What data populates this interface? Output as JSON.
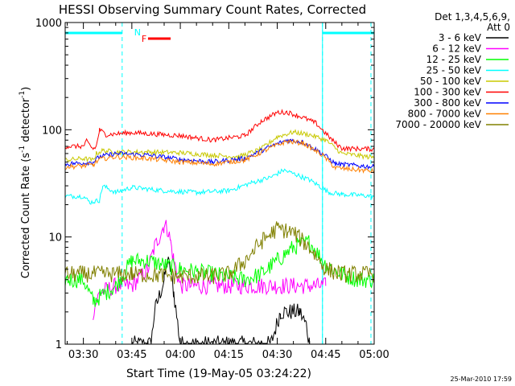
{
  "chart_data": {
    "type": "line",
    "title": "HESSI Observing Summary Count Rates, Corrected",
    "xlabel": "Start Time (19-May-05 03:24:22)",
    "ylabel": "Corrected Count Rate (s-1 detector-1)",
    "ylabel_parts": {
      "a": "Corrected Count Rate (s",
      "b": "-1",
      "c": " detector",
      "d": "-1",
      "e": ")"
    },
    "xscale": "time",
    "yscale": "log",
    "xlim": [
      "03:24:22",
      "05:00:00"
    ],
    "ylim": [
      1,
      1000
    ],
    "x_ticks": [
      "03:30",
      "03:45",
      "04:00",
      "04:15",
      "04:30",
      "04:45",
      "05:00"
    ],
    "y_ticks": [
      "1",
      "10",
      "100",
      "1000"
    ],
    "legend_header": [
      "Det 1,3,4,5,6,9,",
      "Att 0"
    ],
    "legend_position": "right",
    "footer_date": "25-Mar-2010 17:59",
    "flags": [
      {
        "label": "N",
        "color": "#00ffff",
        "intervals": [
          [
            "03:24:22",
            "03:42:00"
          ],
          [
            "04:44:00",
            "05:00:00"
          ]
        ]
      },
      {
        "label": "F",
        "color": "#ff0000",
        "intervals": [
          [
            "03:50:00",
            "03:57:00"
          ]
        ]
      }
    ],
    "dashed_markers": [
      "03:42:00",
      "04:44:00",
      "04:59:00"
    ],
    "solid_markers": [
      "03:24:22",
      "04:44:00"
    ],
    "series": [
      {
        "name": "3 - 6 keV",
        "color": "#000000",
        "x": [
          "03:45",
          "03:51",
          "03:52",
          "03:55",
          "03:56",
          "03:57",
          "03:58",
          "04:00",
          "04:28",
          "04:31",
          "04:34",
          "04:36",
          "04:37",
          "04:39",
          "04:40"
        ],
        "y": [
          1,
          1,
          2,
          4,
          6,
          5,
          3,
          1,
          1,
          2,
          2,
          2,
          2,
          1.5,
          1
        ]
      },
      {
        "name": "6 - 12 keV",
        "color": "#ff00ff",
        "x": [
          "03:33",
          "03:35",
          "03:40",
          "03:45",
          "03:50",
          "03:52",
          "03:54",
          "03:55",
          "03:56",
          "03:57",
          "03:58",
          "04:00",
          "04:05",
          "04:15",
          "04:30",
          "04:45"
        ],
        "y": [
          2,
          3,
          3.5,
          3.5,
          5,
          8,
          11,
          13,
          12,
          9,
          6,
          3.5,
          3.5,
          3.5,
          3.5,
          3.5
        ]
      },
      {
        "name": "12 - 25 keV",
        "color": "#00ff00",
        "x": [
          "03:24:22",
          "03:30",
          "03:33",
          "03:40",
          "03:45",
          "03:50",
          "04:00",
          "04:10",
          "04:20",
          "04:25",
          "04:30",
          "04:35",
          "04:40",
          "04:45",
          "04:50",
          "04:55",
          "05:00"
        ],
        "y": [
          4,
          4,
          2.5,
          3.5,
          6,
          6,
          5,
          4.5,
          4,
          4.5,
          6,
          8,
          9,
          5.5,
          4.5,
          4,
          4
        ]
      },
      {
        "name": "25 - 50 keV",
        "color": "#00ffff",
        "x": [
          "03:24:22",
          "03:30",
          "03:32",
          "03:35",
          "03:36",
          "03:40",
          "03:45",
          "03:55",
          "04:05",
          "04:15",
          "04:22",
          "04:28",
          "04:32",
          "04:36",
          "04:40",
          "04:43",
          "04:46",
          "04:50",
          "05:00"
        ],
        "y": [
          24,
          24,
          21,
          22,
          30,
          26,
          29,
          27,
          26,
          27,
          32,
          36,
          42,
          38,
          34,
          30,
          26,
          25,
          24
        ]
      },
      {
        "name": "50 - 100 keV",
        "color": "#c8c800",
        "x": [
          "03:24:22",
          "03:30",
          "03:33",
          "03:34",
          "03:36",
          "03:40",
          "03:50",
          "04:00",
          "04:10",
          "04:18",
          "04:25",
          "04:30",
          "04:35",
          "04:40",
          "04:45",
          "04:50",
          "05:00"
        ],
        "y": [
          52,
          54,
          52,
          60,
          64,
          62,
          62,
          61,
          58,
          56,
          66,
          86,
          95,
          90,
          80,
          60,
          55
        ]
      },
      {
        "name": "100 - 300 keV",
        "color": "#ff0000",
        "x": [
          "03:24:22",
          "03:30",
          "03:31",
          "03:33",
          "03:34",
          "03:35",
          "03:37",
          "03:45",
          "04:00",
          "04:10",
          "04:20",
          "04:25",
          "04:30",
          "04:33",
          "04:38",
          "04:42",
          "04:47",
          "04:50",
          "05:00"
        ],
        "y": [
          70,
          70,
          78,
          66,
          70,
          100,
          90,
          94,
          88,
          80,
          88,
          120,
          145,
          146,
          130,
          115,
          80,
          67,
          66
        ]
      },
      {
        "name": "300 - 800 keV",
        "color": "#0000ff",
        "x": [
          "03:24:22",
          "03:30",
          "03:33",
          "03:35",
          "03:40",
          "03:50",
          "04:00",
          "04:10",
          "04:20",
          "04:28",
          "04:33",
          "04:38",
          "04:44",
          "04:48",
          "05:00"
        ],
        "y": [
          48,
          49,
          50,
          56,
          60,
          58,
          53,
          50,
          54,
          70,
          80,
          77,
          60,
          48,
          45
        ]
      },
      {
        "name": "800 - 7000 keV",
        "color": "#ff8000",
        "x": [
          "03:24:22",
          "03:30",
          "03:33",
          "03:35",
          "03:40",
          "03:50",
          "04:00",
          "04:10",
          "04:20",
          "04:28",
          "04:33",
          "04:38",
          "04:44",
          "04:48",
          "05:00"
        ],
        "y": [
          45,
          46,
          47,
          53,
          56,
          54,
          50,
          48,
          52,
          68,
          78,
          75,
          58,
          44,
          41
        ]
      },
      {
        "name": "7000 - 20000 keV",
        "color": "#808000",
        "x": [
          "03:24:22",
          "03:45",
          "04:00",
          "04:10",
          "04:15",
          "04:20",
          "04:25",
          "04:30",
          "04:35",
          "04:40",
          "04:45",
          "04:50",
          "05:00"
        ],
        "y": [
          4.5,
          4.5,
          4.3,
          4.3,
          4.5,
          6,
          9,
          12,
          11,
          8,
          5,
          4.5,
          4.5
        ]
      }
    ]
  }
}
